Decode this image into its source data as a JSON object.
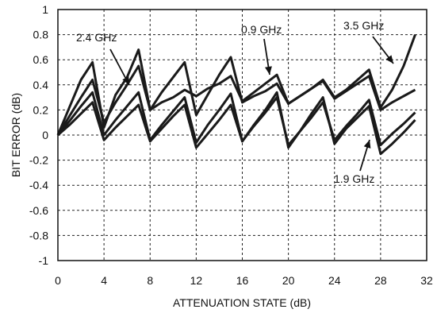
{
  "chart_data": {
    "type": "line",
    "xlabel": "ATTENUATION STATE (dB)",
    "ylabel": "BIT ERROR (dB)",
    "xlim": [
      0,
      32
    ],
    "ylim": [
      -1,
      1
    ],
    "x_ticks": [
      "0",
      "4",
      "8",
      "12",
      "16",
      "20",
      "24",
      "28",
      "32"
    ],
    "y_ticks": [
      "1",
      "0.8",
      "0.6",
      "0.4",
      "0.2",
      "0",
      "-0.2",
      "-0.4",
      "-0.6",
      "-0.8",
      "-1"
    ],
    "grid": true,
    "series": [
      {
        "name": "2.4 GHz",
        "x": [
          0,
          1,
          2,
          3,
          4,
          5,
          6,
          7,
          8,
          9,
          10,
          11,
          12,
          13,
          14,
          15,
          16,
          17,
          18,
          19,
          20,
          21,
          22,
          23,
          24,
          25,
          26,
          27,
          28,
          29,
          30,
          31
        ],
        "y": [
          0,
          0.11,
          0.23,
          0.34,
          0,
          0.12,
          0.23,
          0.34,
          -0.04,
          0.08,
          0.19,
          0.3,
          -0.06,
          0.08,
          0.2,
          0.33,
          -0.05,
          0.07,
          0.18,
          0.3,
          -0.08,
          0.03,
          0.14,
          0.26,
          -0.04,
          0.07,
          0.17,
          0.28,
          -0.08,
          0.01,
          0.09,
          0.18
        ]
      },
      {
        "name": "3.5 GHz",
        "x": [
          0,
          1,
          2,
          3,
          4,
          5,
          6,
          7,
          8,
          9,
          10,
          11,
          12,
          13,
          14,
          15,
          16,
          17,
          18,
          19,
          20,
          21,
          22,
          23,
          24,
          25,
          26,
          27,
          28,
          29,
          30,
          31
        ],
        "y": [
          0,
          0.15,
          0.3,
          0.44,
          0.1,
          0.26,
          0.4,
          0.55,
          0.2,
          0.34,
          0.46,
          0.58,
          0.16,
          0.32,
          0.48,
          0.62,
          0.26,
          0.31,
          0.35,
          0.41,
          0.25,
          0.31,
          0.37,
          0.44,
          0.3,
          0.36,
          0.44,
          0.52,
          0.22,
          0.36,
          0.55,
          0.8
        ]
      },
      {
        "name": "0.9 GHz",
        "x": [
          0,
          1,
          2,
          3,
          4,
          5,
          6,
          7,
          8,
          9,
          10,
          11,
          12,
          13,
          14,
          15,
          16,
          17,
          18,
          19,
          20,
          21,
          22,
          23,
          24,
          25,
          26,
          27,
          28,
          29,
          30,
          31
        ],
        "y": [
          0,
          0.22,
          0.44,
          0.58,
          0.06,
          0.32,
          0.46,
          0.68,
          0.2,
          0.26,
          0.3,
          0.36,
          0.31,
          0.37,
          0.41,
          0.47,
          0.27,
          0.34,
          0.41,
          0.48,
          0.25,
          0.31,
          0.37,
          0.43,
          0.29,
          0.35,
          0.41,
          0.47,
          0.2,
          0.26,
          0.31,
          0.36
        ]
      },
      {
        "name": "1.9 GHz",
        "x": [
          0,
          1,
          2,
          3,
          4,
          5,
          6,
          7,
          8,
          9,
          10,
          11,
          12,
          13,
          14,
          15,
          16,
          17,
          18,
          19,
          20,
          21,
          22,
          23,
          24,
          25,
          26,
          27,
          28,
          29,
          30,
          31
        ],
        "y": [
          0,
          0.08,
          0.17,
          0.26,
          -0.04,
          0.06,
          0.15,
          0.24,
          -0.05,
          0.05,
          0.15,
          0.24,
          -0.1,
          0.01,
          0.12,
          0.24,
          -0.05,
          0.08,
          0.2,
          0.34,
          -0.1,
          0.03,
          0.17,
          0.3,
          -0.07,
          0.05,
          0.14,
          0.23,
          -0.15,
          -0.07,
          0.02,
          0.12
        ]
      }
    ],
    "annotations": [
      {
        "text": "2.4 GHz",
        "x": 5.7,
        "y": 0.53
      },
      {
        "text": "0.9 GHz",
        "x": 18.6,
        "y": 0.47
      },
      {
        "text": "3.5 GHz",
        "x": 29.4,
        "y": 0.36
      },
      {
        "text": "1.9 GHz",
        "x": 26.8,
        "y": -0.02
      }
    ]
  }
}
